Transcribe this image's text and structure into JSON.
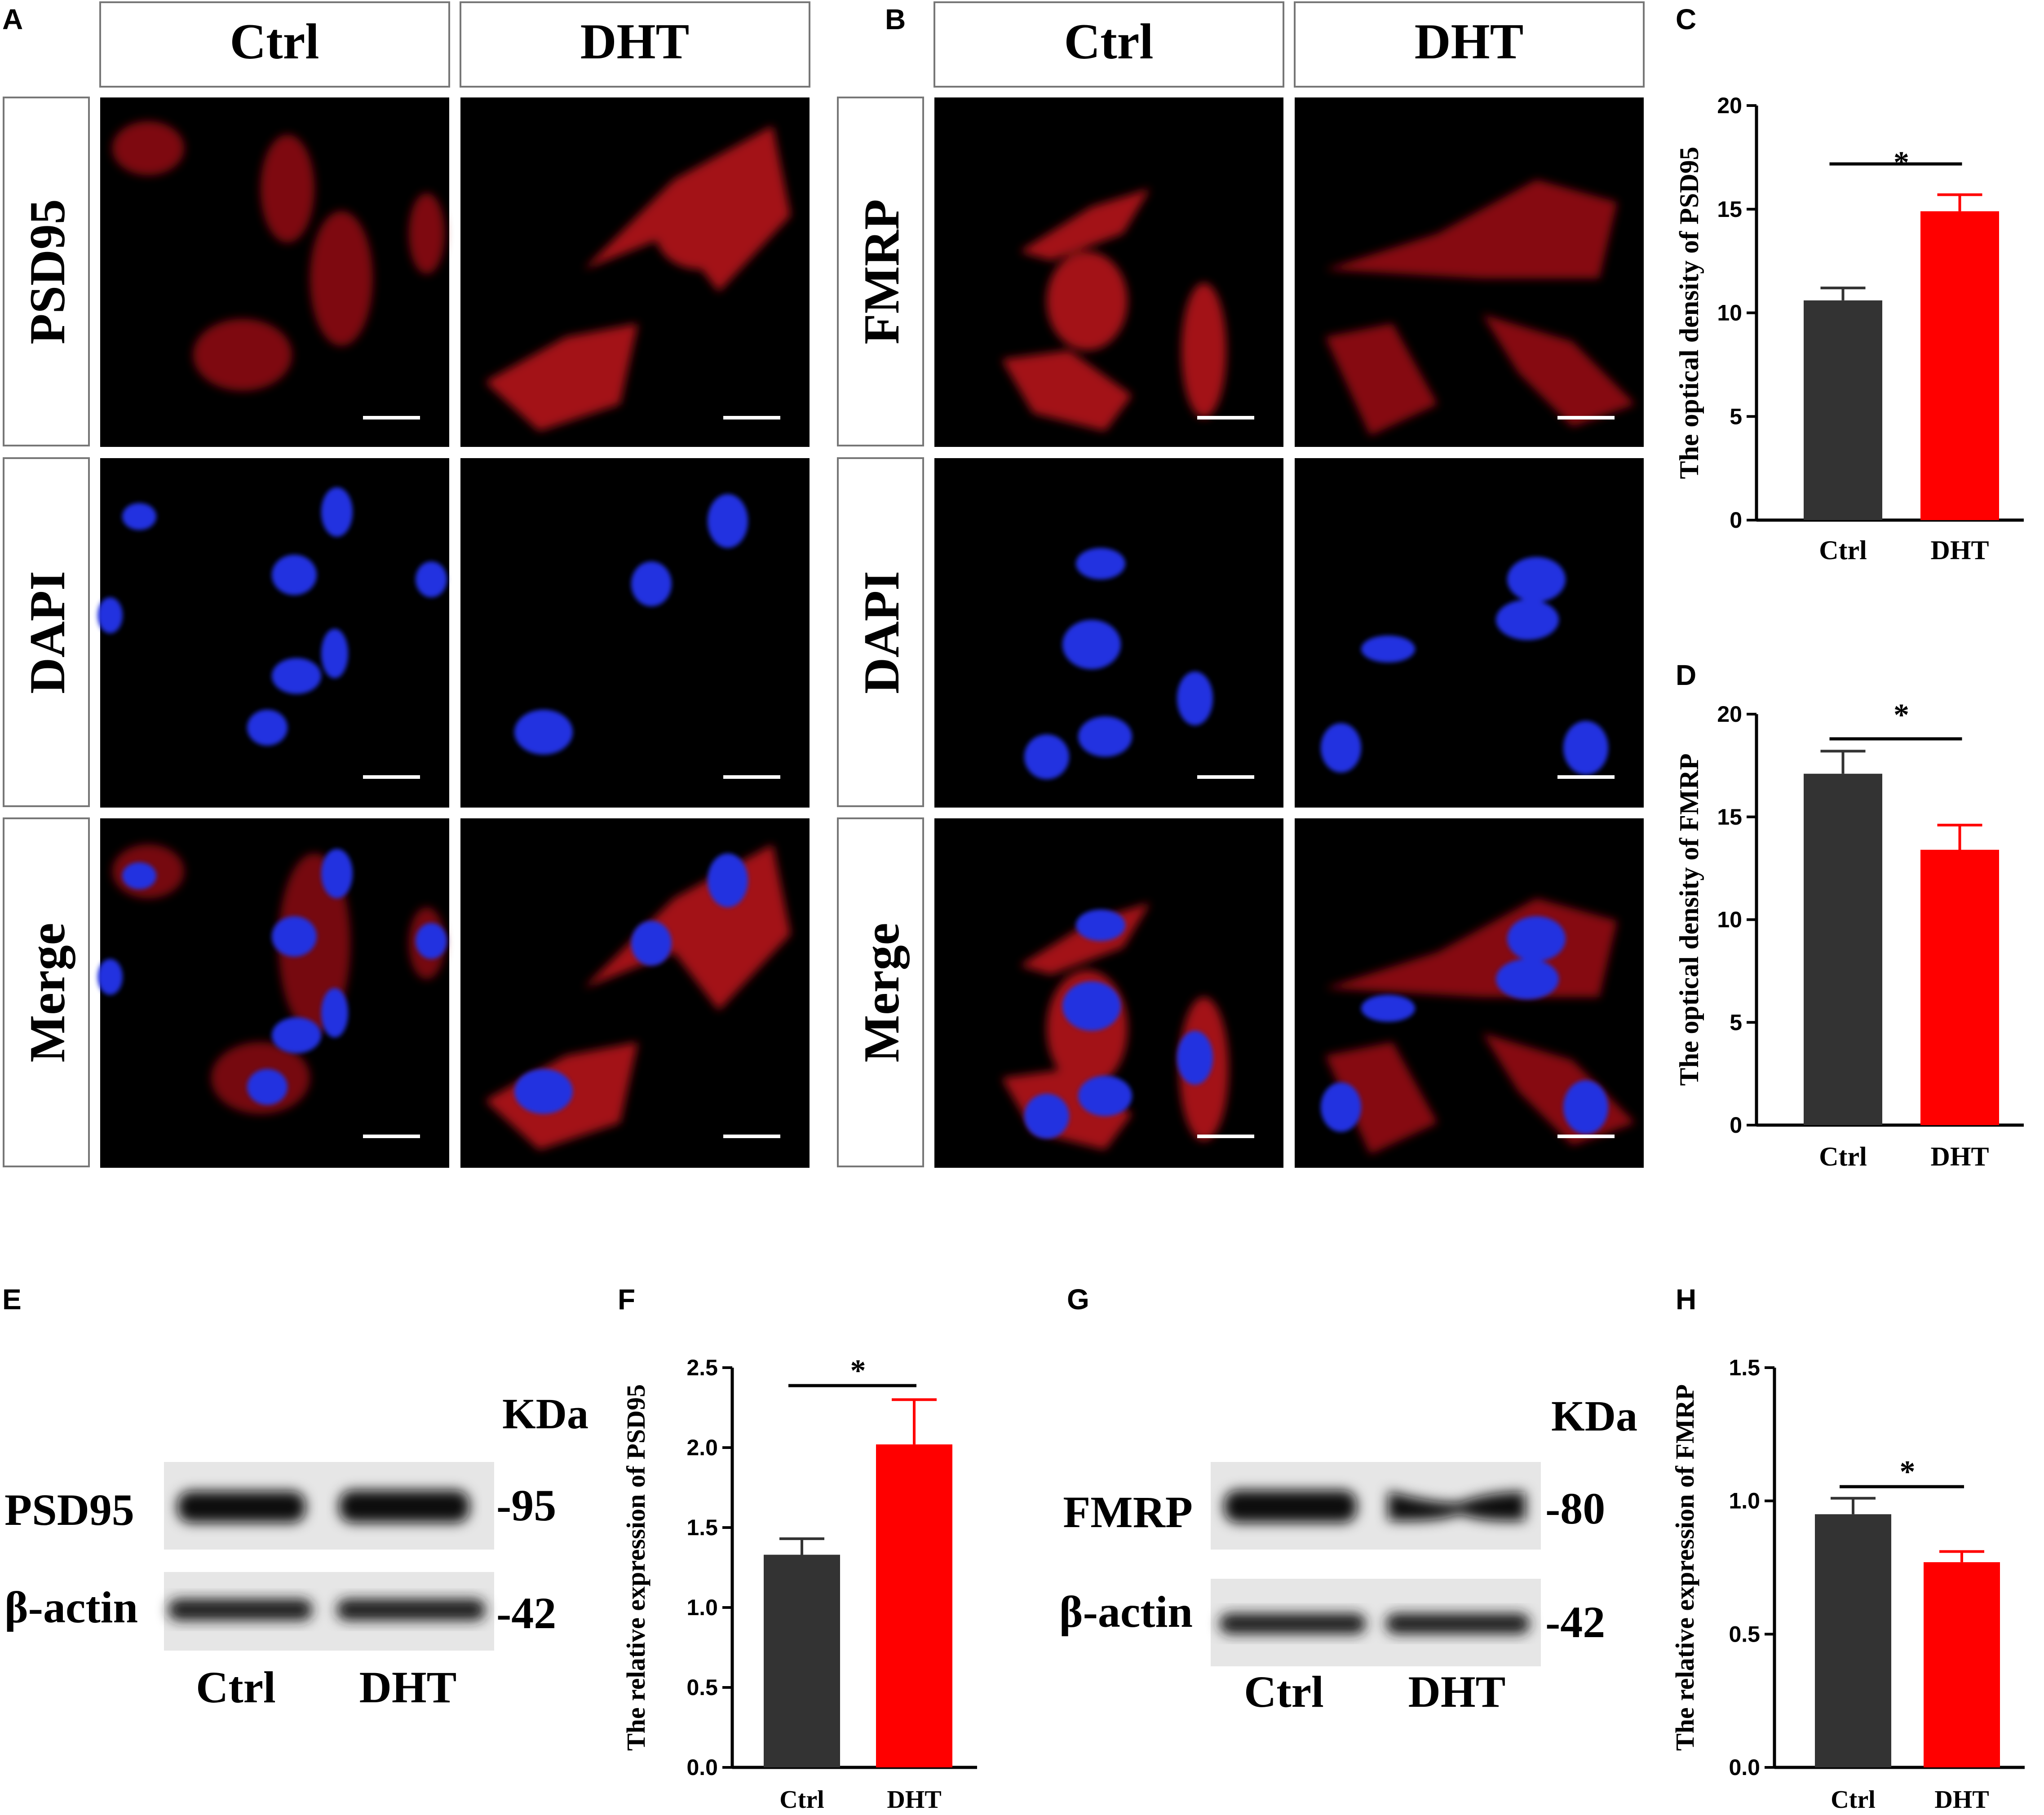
{
  "panel_letters": {
    "A": "A",
    "B": "B",
    "C": "C",
    "D": "D",
    "E": "E",
    "F": "F",
    "G": "G",
    "H": "H"
  },
  "panel_a": {
    "col_headers": [
      "Ctrl",
      "DHT"
    ],
    "row_labels": [
      "PSD95",
      "DAPI",
      "Merge"
    ]
  },
  "panel_b": {
    "col_headers": [
      "Ctrl",
      "DHT"
    ],
    "row_labels": [
      "FMRP",
      "DAPI",
      "Merge"
    ]
  },
  "panel_e": {
    "kda": "KDa",
    "bands": [
      {
        "label": "PSD95",
        "size": "-95"
      },
      {
        "label": "β-actin",
        "size": "-42"
      }
    ],
    "lanes": [
      "Ctrl",
      "DHT"
    ]
  },
  "panel_g": {
    "kda": "KDa",
    "bands": [
      {
        "label": "FMRP",
        "size": "-80"
      },
      {
        "label": "β-actin",
        "size": "-42"
      }
    ],
    "lanes": [
      "Ctrl",
      "DHT"
    ]
  },
  "colors": {
    "ctrl": "#333333",
    "dht": "#ff0000",
    "red_stain": "#c0141c",
    "blue_stain": "#2030e0"
  },
  "chart_data": [
    {
      "panel": "C",
      "type": "bar",
      "categories": [
        "Ctrl",
        "DHT"
      ],
      "values": [
        10.6,
        14.9
      ],
      "errors": [
        0.6,
        0.8
      ],
      "ylim": [
        0,
        20
      ],
      "ticks": [
        "0",
        "5",
        "10",
        "15",
        "20"
      ],
      "ylabel": "The optical density of PSD95",
      "significance": "*"
    },
    {
      "panel": "D",
      "type": "bar",
      "categories": [
        "Ctrl",
        "DHT"
      ],
      "values": [
        17.1,
        13.4
      ],
      "errors": [
        1.1,
        1.2
      ],
      "ylim": [
        0,
        20
      ],
      "ticks": [
        "0",
        "5",
        "10",
        "15",
        "20"
      ],
      "ylabel": "The optical density of  FMRP",
      "significance": "*"
    },
    {
      "panel": "F",
      "type": "bar",
      "categories": [
        "Ctrl",
        "DHT"
      ],
      "values": [
        1.33,
        2.02
      ],
      "errors": [
        0.1,
        0.28
      ],
      "ylim": [
        0,
        2.5
      ],
      "ticks": [
        "0.0",
        "0.5",
        "1.0",
        "1.5",
        "2.0",
        "2.5"
      ],
      "ylabel": "The relative expression of PSD95",
      "significance": "*"
    },
    {
      "panel": "H",
      "type": "bar",
      "categories": [
        "Ctrl",
        "DHT"
      ],
      "values": [
        0.95,
        0.77
      ],
      "errors": [
        0.06,
        0.04
      ],
      "ylim": [
        0,
        1.5
      ],
      "ticks": [
        "0.0",
        "0.5",
        "1.0",
        "1.5"
      ],
      "ylabel": "The relative expression of FMRP",
      "significance": "*"
    }
  ]
}
